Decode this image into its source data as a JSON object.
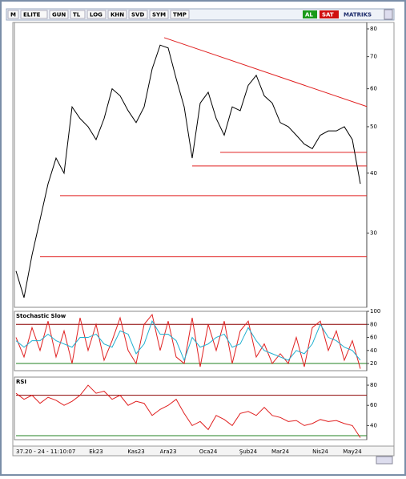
{
  "toolbar": {
    "left": [
      "M",
      "ELITE",
      "GUN",
      "TL",
      "LOG",
      "KHN",
      "SVD",
      "SYM",
      "TMP"
    ],
    "right": [
      "AL",
      "SAT",
      "MATRIKS"
    ]
  },
  "status": "37.20 - 24 - 11:10:07",
  "chart_data": [
    {
      "type": "line",
      "log": true,
      "color": "#000000",
      "categories": [
        null,
        null,
        null,
        null,
        null,
        null,
        null,
        null,
        null,
        null,
        "Ek23",
        null,
        null,
        null,
        null,
        "Kas23",
        null,
        null,
        null,
        "Ara23",
        null,
        null,
        null,
        null,
        "Oca24",
        null,
        null,
        null,
        null,
        "Şub24",
        null,
        null,
        null,
        "Mar24",
        null,
        null,
        null,
        null,
        "Nis24",
        null,
        null,
        null,
        "May24",
        null
      ],
      "values": [
        25,
        22,
        27,
        32,
        38,
        43,
        40,
        55,
        52,
        50,
        47,
        52,
        60,
        58,
        54,
        51,
        55,
        66,
        74,
        73,
        63,
        55,
        43,
        56,
        59,
        52,
        48,
        55,
        54,
        61,
        64,
        58,
        56,
        51,
        50,
        48,
        46,
        45,
        48,
        49,
        49,
        50,
        47,
        38
      ],
      "ylim": [
        21,
        82.5
      ],
      "yticks": [
        30,
        40,
        50,
        60,
        70,
        80
      ],
      "levels": [
        {
          "value": 44.2,
          "from": 25.5,
          "color": "#e02020"
        },
        {
          "value": 41.4,
          "from": 22,
          "color": "#e02020"
        },
        {
          "value": 35.9,
          "from": 5.5,
          "color": "#e02020"
        },
        {
          "value": 26.8,
          "from": 3,
          "color": "#e02020"
        }
      ],
      "trend": {
        "from": [
          18.5,
          76.7
        ],
        "to": [
          43.8,
          55.1
        ],
        "color": "#e02020"
      }
    },
    {
      "type": "line",
      "title": "Stochastic Slow",
      "series": [
        {
          "color": "#e02020",
          "values": [
            60,
            30,
            75,
            40,
            85,
            30,
            70,
            20,
            90,
            40,
            80,
            25,
            55,
            90,
            40,
            20,
            80,
            95,
            40,
            85,
            30,
            20,
            90,
            15,
            80,
            40,
            85,
            20,
            70,
            85,
            30,
            50,
            20,
            35,
            20,
            60,
            15,
            75,
            85,
            40,
            70,
            25,
            55,
            12
          ]
        },
        {
          "color": "#20b0d0",
          "values": [
            55,
            45,
            55,
            55,
            65,
            55,
            50,
            45,
            60,
            60,
            65,
            50,
            45,
            70,
            65,
            35,
            50,
            85,
            65,
            65,
            55,
            25,
            60,
            45,
            50,
            60,
            65,
            45,
            50,
            75,
            55,
            40,
            35,
            30,
            25,
            40,
            35,
            50,
            80,
            60,
            55,
            45,
            40,
            25
          ]
        }
      ],
      "ylim": [
        9,
        100
      ],
      "yticks": [
        20,
        40,
        60,
        80,
        100
      ],
      "levels": [
        {
          "value": 80,
          "from": 0,
          "color": "#8b0000"
        },
        {
          "value": 20,
          "from": 0,
          "color": "#208020"
        }
      ]
    },
    {
      "type": "line",
      "title": "RSI",
      "color": "#e02020",
      "values": [
        72,
        66,
        70,
        62,
        68,
        65,
        60,
        64,
        70,
        80,
        72,
        74,
        66,
        70,
        60,
        64,
        62,
        50,
        56,
        60,
        66,
        52,
        40,
        44,
        36,
        50,
        46,
        40,
        52,
        54,
        50,
        58,
        50,
        48,
        44,
        45,
        40,
        42,
        46,
        44,
        45,
        42,
        40,
        28
      ],
      "ylim": [
        26,
        88
      ],
      "yticks": [
        40,
        60,
        80
      ],
      "levels": [
        {
          "value": 70,
          "from": 0,
          "color": "#8b0000"
        },
        {
          "value": 30,
          "from": 0,
          "color": "#208020"
        }
      ]
    }
  ]
}
